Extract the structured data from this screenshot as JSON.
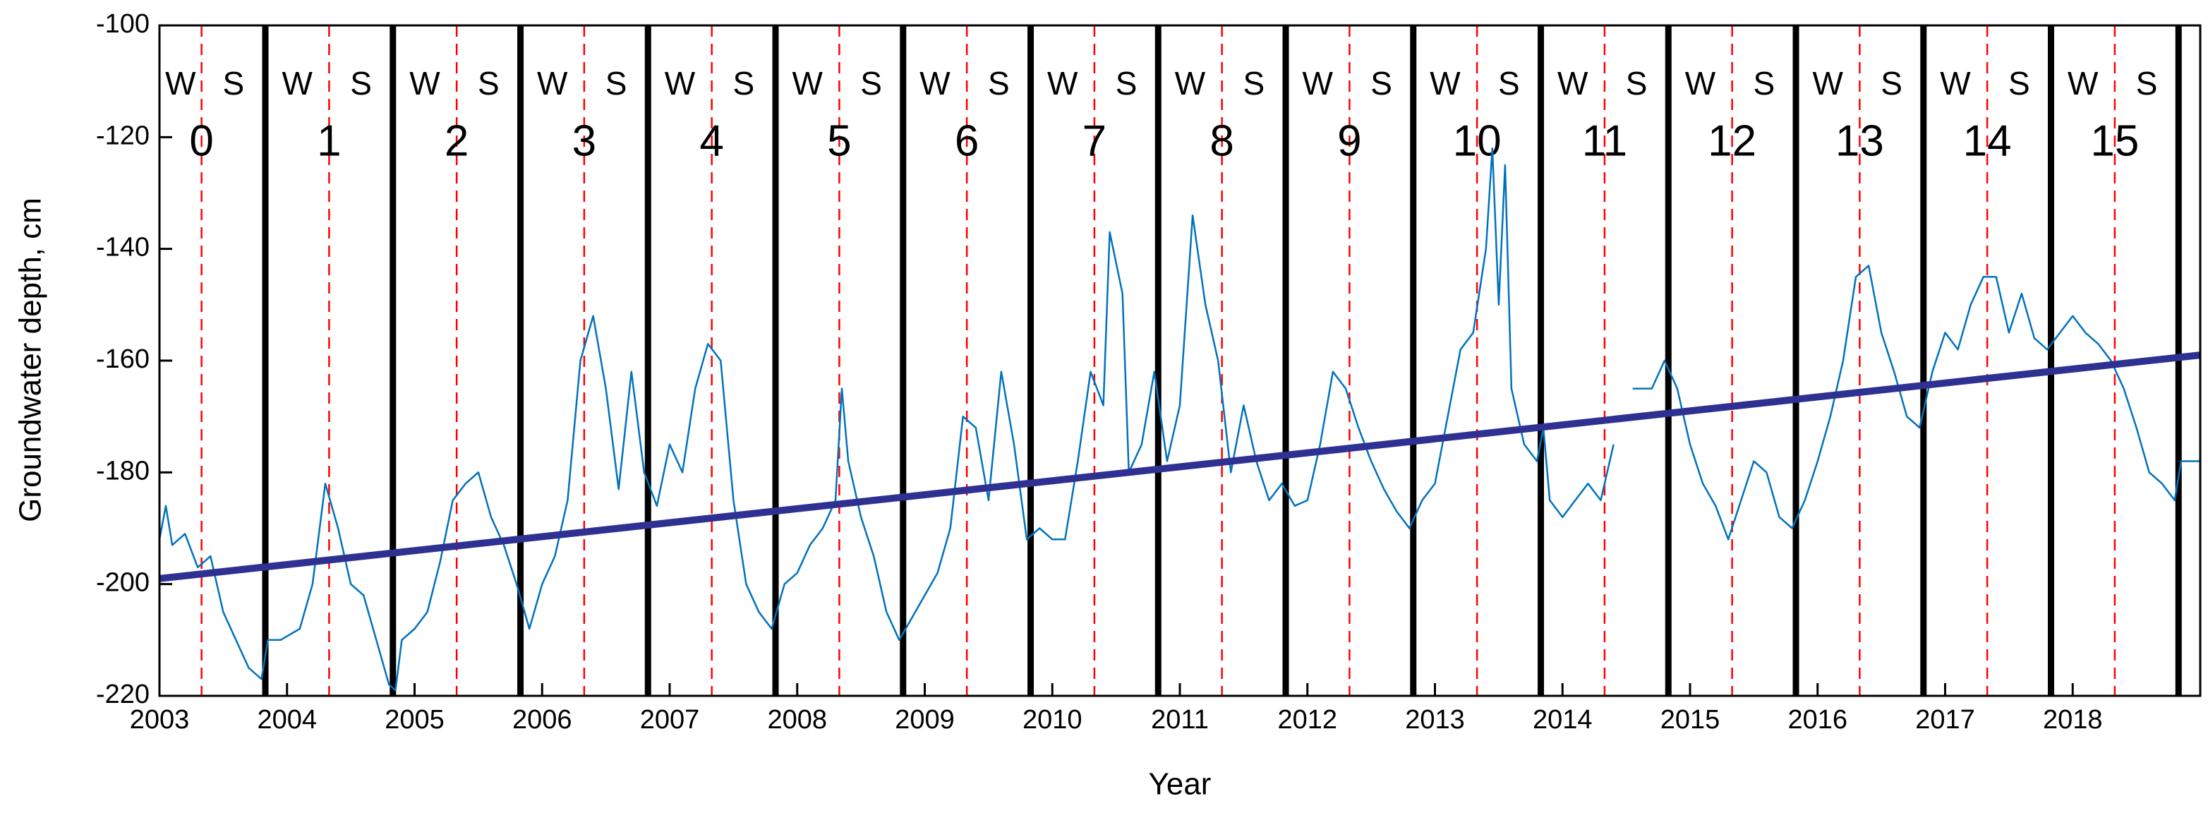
{
  "chart_data": {
    "type": "line",
    "xlabel": "Year",
    "ylabel": "Groundwater depth, cm",
    "xlim": [
      2003,
      2019
    ],
    "ylim": [
      -220,
      -100
    ],
    "xticks": [
      2003,
      2004,
      2005,
      2006,
      2007,
      2008,
      2009,
      2010,
      2011,
      2012,
      2013,
      2014,
      2015,
      2016,
      2017,
      2018
    ],
    "yticks": [
      -100,
      -120,
      -140,
      -160,
      -180,
      -200,
      -220
    ],
    "year_boundaries": [
      2003.83,
      2004.83,
      2005.83,
      2006.83,
      2007.83,
      2008.83,
      2009.83,
      2010.83,
      2011.83,
      2012.83,
      2013.83,
      2014.83,
      2015.83,
      2016.83,
      2017.83,
      2018.83
    ],
    "boundary_color": "#000000",
    "season_boundaries": [
      2003.33,
      2004.33,
      2005.33,
      2006.33,
      2007.33,
      2008.33,
      2009.33,
      2010.33,
      2011.33,
      2012.33,
      2013.33,
      2014.33,
      2015.33,
      2016.33,
      2017.33,
      2018.33
    ],
    "season_color": "#ff0000",
    "winter_label": "W",
    "summer_label": "S",
    "hydro_years": [
      "0",
      "1",
      "2",
      "3",
      "4",
      "5",
      "6",
      "7",
      "8",
      "9",
      "10",
      "11",
      "12",
      "13",
      "14",
      "15"
    ],
    "series": [
      {
        "color": "#0072bd",
        "x": [
          2003.0,
          2003.05,
          2003.1,
          2003.2,
          2003.3,
          2003.4,
          2003.5,
          2003.6,
          2003.7,
          2003.8,
          2003.85,
          2003.95,
          2004.1,
          2004.2,
          2004.3,
          2004.4,
          2004.5,
          2004.6,
          2004.7,
          2004.8,
          2004.85,
          2004.9,
          2005.0,
          2005.1,
          2005.2,
          2005.3,
          2005.4,
          2005.5,
          2005.6,
          2005.7,
          2005.8,
          2005.9,
          2006.0,
          2006.1,
          2006.2,
          2006.3,
          2006.4,
          2006.5,
          2006.6,
          2006.7,
          2006.8,
          2006.9,
          2007.0,
          2007.1,
          2007.2,
          2007.3,
          2007.4,
          2007.5,
          2007.6,
          2007.7,
          2007.8,
          2007.9,
          2008.0,
          2008.1,
          2008.2,
          2008.3,
          2008.35,
          2008.4,
          2008.5,
          2008.6,
          2008.7,
          2008.8,
          2008.85,
          2009.0,
          2009.1,
          2009.2,
          2009.3,
          2009.4,
          2009.5,
          2009.6,
          2009.7,
          2009.8,
          2009.9,
          2010.0,
          2010.1,
          2010.2,
          2010.3,
          2010.4,
          2010.45,
          2010.55,
          2010.6,
          2010.7,
          2010.8,
          2010.9,
          2011.0,
          2011.1,
          2011.2,
          2011.3,
          2011.4,
          2011.5,
          2011.6,
          2011.7,
          2011.8,
          2011.9,
          2012.0,
          2012.1,
          2012.2,
          2012.3,
          2012.4,
          2012.5,
          2012.6,
          2012.7,
          2012.8,
          2012.9,
          2013.0,
          2013.1,
          2013.2,
          2013.3,
          2013.4,
          2013.45,
          2013.5,
          2013.55,
          2013.6,
          2013.7,
          2013.8,
          2013.85,
          2013.9,
          2014.0,
          2014.1,
          2014.2,
          2014.3,
          2014.4,
          2014.5,
          2014.55,
          2014.7,
          2014.8,
          2014.9,
          2015.0,
          2015.1,
          2015.2,
          2015.3,
          2015.4,
          2015.5,
          2015.6,
          2015.7,
          2015.8,
          2015.9,
          2016.0,
          2016.1,
          2016.2,
          2016.3,
          2016.4,
          2016.5,
          2016.6,
          2016.7,
          2016.8,
          2016.9,
          2017.0,
          2017.1,
          2017.2,
          2017.3,
          2017.4,
          2017.5,
          2017.6,
          2017.7,
          2017.8,
          2017.9,
          2018.0,
          2018.1,
          2018.2,
          2018.3,
          2018.4,
          2018.5,
          2018.6,
          2018.7,
          2018.8,
          2018.85,
          2019.0
        ],
        "values": [
          -192,
          -186,
          -193,
          -191,
          -197,
          -195,
          -205,
          -210,
          -215,
          -217,
          -210,
          -210,
          -208,
          -200,
          -182,
          -190,
          -200,
          -202,
          -210,
          -218,
          -219,
          -210,
          -208,
          -205,
          -196,
          -185,
          -182,
          -180,
          -188,
          -193,
          -200,
          -208,
          -200,
          -195,
          -185,
          -160,
          -152,
          -165,
          -183,
          -162,
          -180,
          -186,
          -175,
          -180,
          -165,
          -157,
          -160,
          -185,
          -200,
          -205,
          -208,
          -200,
          -198,
          -193,
          -190,
          -185,
          -165,
          -178,
          -188,
          -195,
          -205,
          -210,
          -208,
          -202,
          -198,
          -190,
          -170,
          -172,
          -185,
          -162,
          -175,
          -192,
          -190,
          -192,
          -192,
          -178,
          -162,
          -168,
          -137,
          -148,
          -180,
          -175,
          -162,
          -178,
          -168,
          -134,
          -150,
          -160,
          -180,
          -168,
          -178,
          -185,
          -182,
          -186,
          -185,
          -175,
          -162,
          -165,
          -172,
          -178,
          -183,
          -187,
          -190,
          -185,
          -182,
          -170,
          -158,
          -155,
          -140,
          -122,
          -150,
          -125,
          -165,
          -175,
          -178,
          -172,
          -185,
          -188,
          -185,
          -182,
          -185,
          -175,
          null,
          -165,
          -165,
          -160,
          -165,
          -175,
          -182,
          -186,
          -192,
          -185,
          -178,
          -180,
          -188,
          -190,
          -185,
          -178,
          -170,
          -160,
          -145,
          -143,
          -155,
          -162,
          -170,
          -172,
          -162,
          -155,
          -158,
          -150,
          -145,
          -145,
          -155,
          -148,
          -156,
          -158,
          -155,
          -152,
          -155,
          -157,
          -160,
          -165,
          -172,
          -180,
          -182,
          -185,
          -178,
          -178
        ]
      },
      {
        "color": "#2e3192",
        "x": [
          2003,
          2019
        ],
        "values": [
          -199,
          -159
        ]
      }
    ]
  }
}
